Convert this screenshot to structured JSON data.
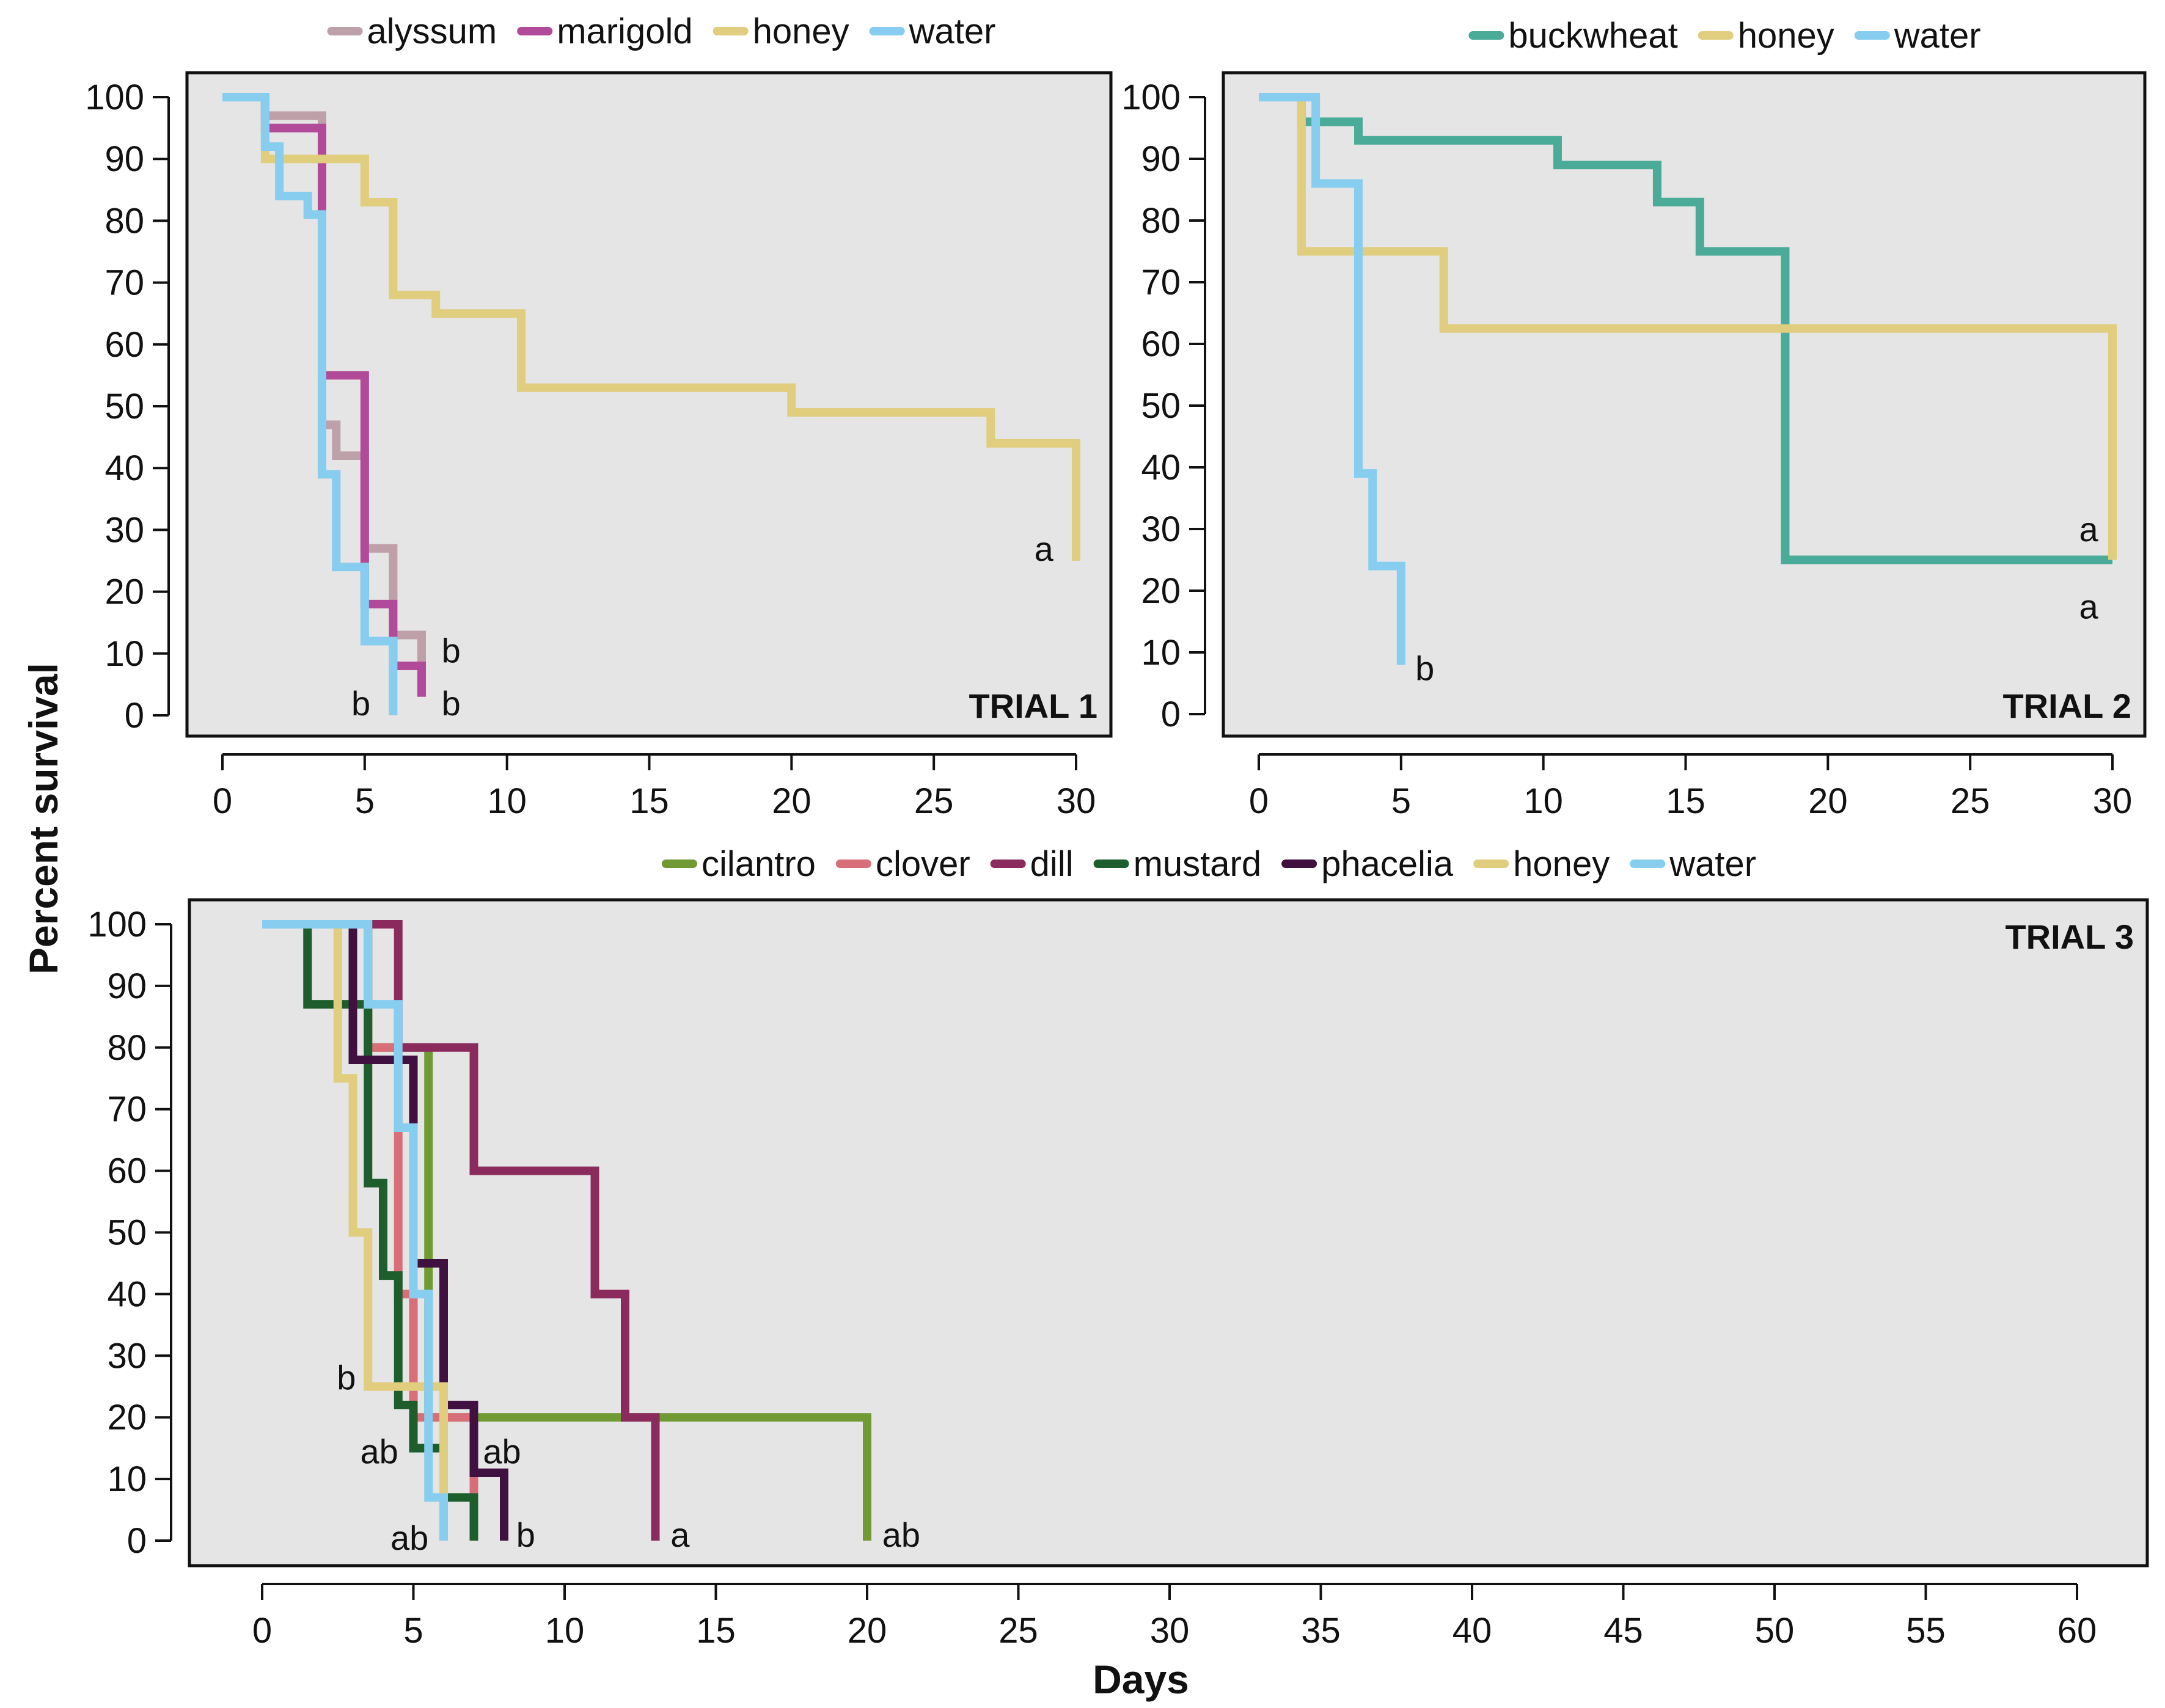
{
  "chart_data": [
    {
      "type": "line",
      "subtype": "kaplan-meier-step",
      "title": "TRIAL 1",
      "xlabel": "Days",
      "ylabel": "Percent survival",
      "xlim": [
        0,
        30
      ],
      "ylim": [
        0,
        100
      ],
      "x_ticks": [
        0,
        5,
        10,
        15,
        20,
        25,
        30
      ],
      "y_ticks": [
        0,
        10,
        20,
        30,
        40,
        50,
        60,
        70,
        80,
        90,
        100
      ],
      "legend_position": "top",
      "series": [
        {
          "name": "alyssum",
          "color": "#bda0a8",
          "steps": [
            [
              0,
              100
            ],
            [
              1.5,
              97
            ],
            [
              3.5,
              47
            ],
            [
              4,
              42
            ],
            [
              5,
              27
            ],
            [
              6,
              13
            ],
            [
              7,
              3
            ]
          ]
        },
        {
          "name": "marigold",
          "color": "#b24a9a",
          "steps": [
            [
              0,
              100
            ],
            [
              1.5,
              95
            ],
            [
              3.5,
              55
            ],
            [
              5,
              18
            ],
            [
              6,
              8
            ],
            [
              7,
              3
            ]
          ]
        },
        {
          "name": "honey",
          "color": "#e0cd7e",
          "steps": [
            [
              0,
              100
            ],
            [
              1.5,
              90
            ],
            [
              5,
              83
            ],
            [
              6,
              68
            ],
            [
              7.5,
              65
            ],
            [
              10.5,
              53
            ],
            [
              20,
              49
            ],
            [
              27,
              44
            ],
            [
              30,
              25
            ]
          ]
        },
        {
          "name": "water",
          "color": "#86cdef",
          "steps": [
            [
              0,
              100
            ],
            [
              1.5,
              92
            ],
            [
              2,
              84
            ],
            [
              3,
              81
            ],
            [
              3.5,
              39
            ],
            [
              4,
              24
            ],
            [
              5,
              12
            ],
            [
              6,
              0
            ]
          ]
        }
      ],
      "annotations": [
        {
          "text": "a",
          "x": 29.2,
          "y": 27,
          "anchor": "end"
        },
        {
          "text": "b",
          "x": 7.7,
          "y": 10.5,
          "anchor": "start"
        },
        {
          "text": "b",
          "x": 7.7,
          "y": 2,
          "anchor": "start"
        },
        {
          "text": "b",
          "x": 5.2,
          "y": 2,
          "anchor": "end"
        }
      ]
    },
    {
      "type": "line",
      "subtype": "kaplan-meier-step",
      "title": "TRIAL 2",
      "xlabel": "Days",
      "ylabel": "Percent survival",
      "xlim": [
        0,
        30
      ],
      "ylim": [
        0,
        100
      ],
      "x_ticks": [
        0,
        5,
        10,
        15,
        20,
        25,
        30
      ],
      "y_ticks": [
        0,
        10,
        20,
        30,
        40,
        50,
        60,
        70,
        80,
        90,
        100
      ],
      "legend_position": "top",
      "series": [
        {
          "name": "buckwheat",
          "color": "#49ab98",
          "steps": [
            [
              0,
              100
            ],
            [
              1.5,
              96
            ],
            [
              3.5,
              93
            ],
            [
              10.5,
              89
            ],
            [
              14,
              83
            ],
            [
              15.5,
              75
            ],
            [
              18.5,
              25
            ],
            [
              30,
              25
            ]
          ]
        },
        {
          "name": "honey",
          "color": "#e0cd7e",
          "steps": [
            [
              0,
              100
            ],
            [
              1.5,
              75
            ],
            [
              6.5,
              62.5
            ],
            [
              30,
              25
            ]
          ]
        },
        {
          "name": "water",
          "color": "#86cdef",
          "steps": [
            [
              0,
              100
            ],
            [
              2,
              86
            ],
            [
              3.5,
              39
            ],
            [
              4,
              24
            ],
            [
              5,
              8
            ]
          ]
        }
      ],
      "annotations": [
        {
          "text": "a",
          "x": 29.5,
          "y": 30,
          "anchor": "end"
        },
        {
          "text": "a",
          "x": 29.5,
          "y": 17.5,
          "anchor": "end"
        },
        {
          "text": "b",
          "x": 5.5,
          "y": 7.5,
          "anchor": "start"
        }
      ]
    },
    {
      "type": "line",
      "subtype": "kaplan-meier-step",
      "title": "TRIAL 3",
      "xlabel": "Days",
      "ylabel": "Percent survival",
      "xlim": [
        0,
        60
      ],
      "ylim": [
        0,
        100
      ],
      "x_ticks": [
        0,
        5,
        10,
        15,
        20,
        25,
        30,
        35,
        40,
        45,
        50,
        55,
        60
      ],
      "y_ticks": [
        0,
        10,
        20,
        30,
        40,
        50,
        60,
        70,
        80,
        90,
        100
      ],
      "legend_position": "top",
      "series": [
        {
          "name": "cilantro",
          "color": "#6f9a34",
          "steps": [
            [
              0,
              100
            ],
            [
              3.5,
              80
            ],
            [
              5.5,
              20
            ],
            [
              20,
              0
            ]
          ]
        },
        {
          "name": "clover",
          "color": "#d86e78",
          "steps": [
            [
              0,
              100
            ],
            [
              3.5,
              80
            ],
            [
              4.5,
              40
            ],
            [
              5,
              20
            ],
            [
              7,
              0
            ]
          ]
        },
        {
          "name": "dill",
          "color": "#8b2a5c",
          "steps": [
            [
              0,
              100
            ],
            [
              4.5,
              80
            ],
            [
              7,
              60
            ],
            [
              11,
              40
            ],
            [
              12,
              20
            ],
            [
              13,
              0
            ]
          ]
        },
        {
          "name": "mustard",
          "color": "#1d5e2c",
          "steps": [
            [
              0,
              100
            ],
            [
              1.5,
              87
            ],
            [
              3.5,
              58
            ],
            [
              4,
              43
            ],
            [
              4.5,
              22
            ],
            [
              5,
              15
            ],
            [
              6,
              7
            ],
            [
              7,
              0
            ]
          ]
        },
        {
          "name": "phacelia",
          "color": "#3f1040",
          "steps": [
            [
              0,
              100
            ],
            [
              3,
              78
            ],
            [
              5,
              45
            ],
            [
              6,
              22
            ],
            [
              7,
              11
            ],
            [
              8,
              0
            ]
          ]
        },
        {
          "name": "honey",
          "color": "#e0cd7e",
          "steps": [
            [
              0,
              100
            ],
            [
              2.5,
              75
            ],
            [
              3,
              50
            ],
            [
              3.5,
              25
            ],
            [
              6,
              0
            ]
          ]
        },
        {
          "name": "water",
          "color": "#86cdef",
          "steps": [
            [
              0,
              100
            ],
            [
              3.5,
              87
            ],
            [
              4.5,
              67
            ],
            [
              5,
              40
            ],
            [
              5.5,
              7
            ],
            [
              6,
              0
            ]
          ]
        }
      ],
      "annotations": [
        {
          "text": "b",
          "x": 3.1,
          "y": 26.5,
          "anchor": "end"
        },
        {
          "text": "ab",
          "x": 4.5,
          "y": 14.5,
          "anchor": "end"
        },
        {
          "text": "ab",
          "x": 7.3,
          "y": 14.5,
          "anchor": "start"
        },
        {
          "text": "ab",
          "x": 5.5,
          "y": 0.5,
          "anchor": "end"
        },
        {
          "text": "b",
          "x": 8.4,
          "y": 1,
          "anchor": "start"
        },
        {
          "text": "a",
          "x": 13.5,
          "y": 1,
          "anchor": "start"
        },
        {
          "text": "ab",
          "x": 20.5,
          "y": 1,
          "anchor": "start"
        }
      ]
    }
  ]
}
